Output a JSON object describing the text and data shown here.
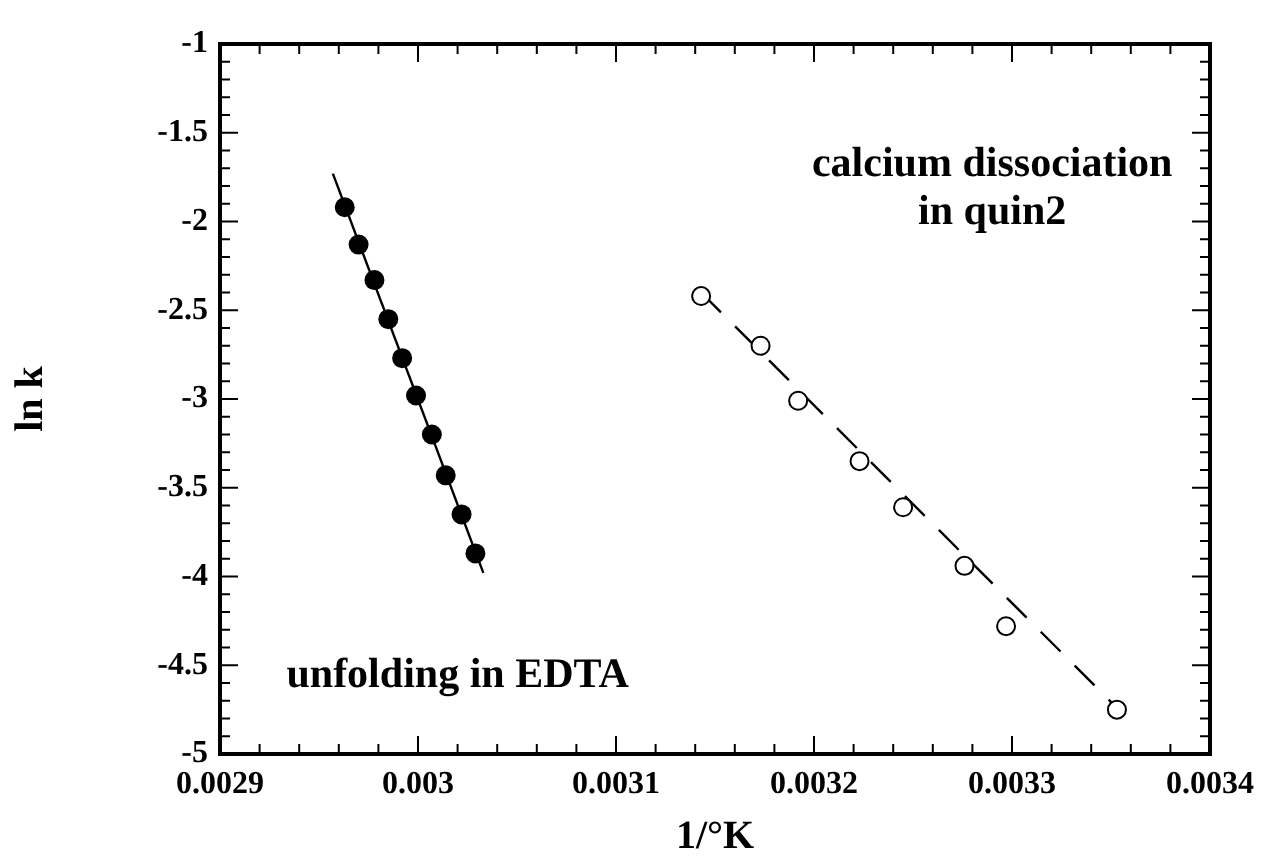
{
  "chart_data": {
    "type": "scatter",
    "xlabel": "1/°K",
    "ylabel": "ln k",
    "annotations": [
      "calcium dissociation\nin quin2",
      "unfolding in EDTA"
    ],
    "series": [
      {
        "type": "line",
        "color": "#000000",
        "marker": "none",
        "line_style": "solid",
        "x": [
          0.002957,
          0.003033
        ],
        "values": [
          -1.73,
          -3.98
        ]
      },
      {
        "type": "scatter",
        "color": "#000000",
        "marker": "circle",
        "x": [
          0.002963,
          0.00297,
          0.002978,
          0.002985,
          0.002992,
          0.002999,
          0.003007,
          0.003014,
          0.003022,
          0.003029
        ],
        "values": [
          -1.92,
          -2.13,
          -2.33,
          -2.55,
          -2.77,
          -2.98,
          -3.2,
          -3.43,
          -3.65,
          -3.87
        ]
      },
      {
        "type": "line",
        "color": "#000000",
        "marker": "none",
        "line_style": "dashed",
        "x": [
          0.003143,
          0.003353
        ],
        "values": [
          -2.4,
          -4.74
        ]
      },
      {
        "type": "scatter",
        "color": "#ffffff",
        "marker": "circle",
        "x": [
          0.003143,
          0.003173,
          0.003192,
          0.003223,
          0.003245,
          0.003276,
          0.003297,
          0.003353
        ],
        "values": [
          -2.42,
          -2.7,
          -3.01,
          -3.35,
          -3.61,
          -3.94,
          -4.28,
          -4.75
        ]
      }
    ],
    "xlim": [
      0.0029,
      0.0034
    ],
    "xticks": [
      0.0029,
      {
        "value": 0.00292,
        "label": null
      },
      {
        "value": 0.00294,
        "label": null
      },
      {
        "value": 0.00296,
        "label": null
      },
      {
        "value": 0.00298,
        "label": null
      },
      0.003,
      {
        "value": 0.00302,
        "label": null
      },
      {
        "value": 0.00304,
        "label": null
      },
      {
        "value": 0.00306,
        "label": null
      },
      {
        "value": 0.00308,
        "label": null
      },
      0.0031,
      {
        "value": 0.00312,
        "label": null
      },
      {
        "value": 0.00314,
        "label": null
      },
      {
        "value": 0.00316,
        "label": null
      },
      {
        "value": 0.00318,
        "label": null
      },
      0.0032,
      {
        "value": 0.00322,
        "label": null
      },
      {
        "value": 0.00324,
        "label": null
      },
      {
        "value": 0.00326,
        "label": null
      },
      {
        "value": 0.00328,
        "label": null
      },
      0.0033,
      {
        "value": 0.00332,
        "label": null
      },
      {
        "value": 0.00334,
        "label": null
      },
      {
        "value": 0.00336,
        "label": null
      },
      {
        "value": 0.00338,
        "label": null
      },
      0.0034
    ],
    "ylim": [
      -5,
      -1
    ],
    "yticks": [
      -5,
      {
        "value": -4.9,
        "label": null
      },
      {
        "value": -4.8,
        "label": null
      },
      {
        "value": -4.7,
        "label": null
      },
      {
        "value": -4.6,
        "label": null
      },
      -4.5,
      {
        "value": -4.4,
        "label": null
      },
      {
        "value": -4.3,
        "label": null
      },
      {
        "value": -4.2,
        "label": null
      },
      {
        "value": -4.1,
        "label": null
      },
      -4,
      {
        "value": -3.9,
        "label": null
      },
      {
        "value": -3.8,
        "label": null
      },
      {
        "value": -3.7,
        "label": null
      },
      {
        "value": -3.6,
        "label": null
      },
      -3.5,
      {
        "value": -3.4,
        "label": null
      },
      {
        "value": -3.3,
        "label": null
      },
      {
        "value": -3.2,
        "label": null
      },
      {
        "value": -3.1,
        "label": null
      },
      -3,
      {
        "value": -2.9,
        "label": null
      },
      {
        "value": -2.8,
        "label": null
      },
      {
        "value": -2.7,
        "label": null
      },
      {
        "value": -2.6,
        "label": null
      },
      -2.5,
      {
        "value": -2.4,
        "label": null
      },
      {
        "value": -2.3,
        "label": null
      },
      {
        "value": -2.2,
        "label": null
      },
      {
        "value": -2.1,
        "label": null
      },
      -2,
      {
        "value": -1.9,
        "label": null
      },
      {
        "value": -1.8,
        "label": null
      },
      {
        "value": -1.7,
        "label": null
      },
      {
        "value": -1.6,
        "label": null
      },
      -1.5,
      {
        "value": -1.4,
        "label": null
      },
      {
        "value": -1.3,
        "label": null
      },
      {
        "value": -1.2,
        "label": null
      },
      {
        "value": -1.1,
        "label": null
      },
      -1
    ],
    "grid": false,
    "legend": false
  }
}
